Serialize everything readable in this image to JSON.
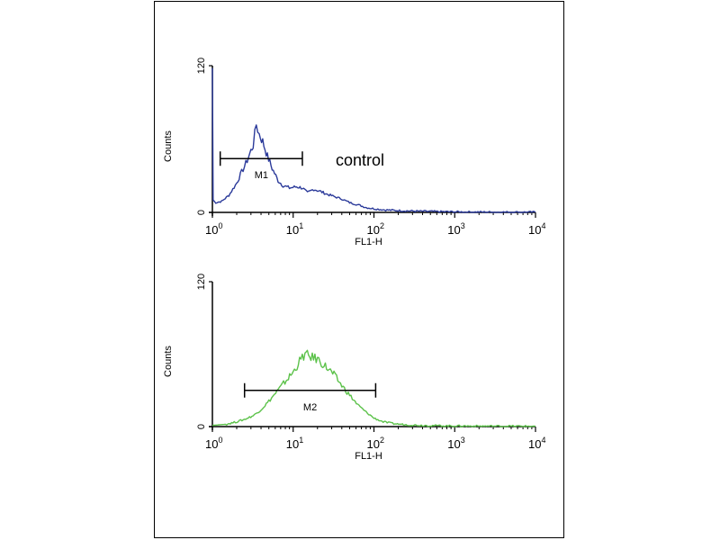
{
  "chart_data": [
    {
      "type": "line",
      "x_scale": "log",
      "xlim": [
        1,
        10000
      ],
      "ylim": [
        0,
        120
      ],
      "xlabel": "FL1-H",
      "ylabel": "Counts",
      "y_ticks": [
        "0",
        "120"
      ],
      "x_ticks": [
        {
          "value": 1,
          "base": "10",
          "exp": "0"
        },
        {
          "value": 10,
          "base": "10",
          "exp": "1"
        },
        {
          "value": 100,
          "base": "10",
          "exp": "2"
        },
        {
          "value": 1000,
          "base": "10",
          "exp": "3"
        },
        {
          "value": 10000,
          "base": "10",
          "exp": "4"
        }
      ],
      "annotation": "control",
      "series": [
        {
          "color": "#2b3a9a",
          "points": [
            [
              1.0,
              118
            ],
            [
              1.02,
              10
            ],
            [
              1.1,
              8
            ],
            [
              1.3,
              9
            ],
            [
              1.6,
              14
            ],
            [
              2.0,
              24
            ],
            [
              2.3,
              33
            ],
            [
              2.6,
              40
            ],
            [
              2.9,
              48
            ],
            [
              3.2,
              55
            ],
            [
              3.5,
              72
            ],
            [
              3.8,
              64
            ],
            [
              4.2,
              58
            ],
            [
              4.8,
              46
            ],
            [
              5.5,
              36
            ],
            [
              6.5,
              26
            ],
            [
              7.5,
              22
            ],
            [
              9,
              20
            ],
            [
              11,
              21
            ],
            [
              13,
              20
            ],
            [
              15,
              16
            ],
            [
              18,
              19
            ],
            [
              22,
              17
            ],
            [
              26,
              15
            ],
            [
              32,
              13
            ],
            [
              40,
              11
            ],
            [
              50,
              8
            ],
            [
              65,
              6
            ],
            [
              80,
              4
            ],
            [
              100,
              3
            ],
            [
              140,
              2
            ],
            [
              200,
              1.5
            ],
            [
              350,
              1
            ],
            [
              700,
              0.6
            ],
            [
              1500,
              0.3
            ],
            [
              4000,
              0.2
            ],
            [
              10000,
              0.2
            ]
          ]
        }
      ],
      "marker": {
        "label": "M1",
        "start": 1.25,
        "end": 13,
        "y": 44
      }
    },
    {
      "type": "line",
      "x_scale": "log",
      "xlim": [
        1,
        10000
      ],
      "ylim": [
        0,
        120
      ],
      "xlabel": "FL1-H",
      "ylabel": "Counts",
      "y_ticks": [
        "0",
        "120"
      ],
      "x_ticks": [
        {
          "value": 1,
          "base": "10",
          "exp": "0"
        },
        {
          "value": 10,
          "base": "10",
          "exp": "1"
        },
        {
          "value": 100,
          "base": "10",
          "exp": "2"
        },
        {
          "value": 1000,
          "base": "10",
          "exp": "3"
        },
        {
          "value": 10000,
          "base": "10",
          "exp": "4"
        }
      ],
      "series": [
        {
          "color": "#5cc24a",
          "points": [
            [
              1.0,
              1
            ],
            [
              1.5,
              2
            ],
            [
              2.0,
              4
            ],
            [
              2.5,
              6
            ],
            [
              3.2,
              9
            ],
            [
              4.0,
              14
            ],
            [
              5.0,
              21
            ],
            [
              6.3,
              29
            ],
            [
              7.9,
              37
            ],
            [
              10,
              45
            ],
            [
              12,
              54
            ],
            [
              14,
              60
            ],
            [
              16,
              58
            ],
            [
              20,
              56
            ],
            [
              25,
              50
            ],
            [
              32,
              43
            ],
            [
              40,
              34
            ],
            [
              50,
              26
            ],
            [
              63,
              18
            ],
            [
              80,
              12
            ],
            [
              100,
              7
            ],
            [
              130,
              4
            ],
            [
              170,
              2.5
            ],
            [
              250,
              1.5
            ],
            [
              400,
              1
            ],
            [
              800,
              0.6
            ],
            [
              2000,
              0.4
            ],
            [
              10000,
              0.3
            ]
          ]
        }
      ],
      "marker": {
        "label": "M2",
        "start": 2.5,
        "end": 105,
        "y": 30
      }
    }
  ]
}
